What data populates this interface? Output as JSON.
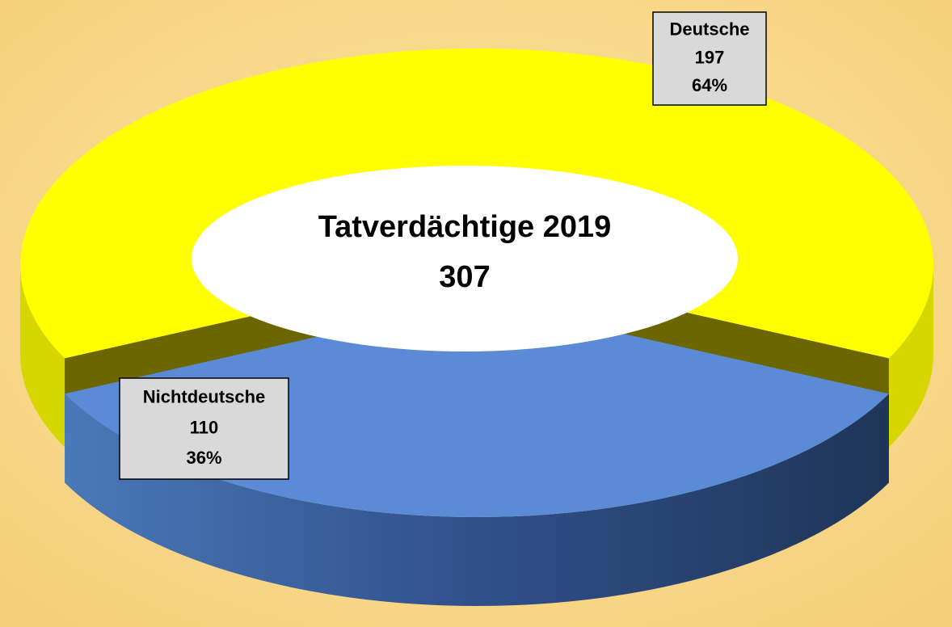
{
  "chart_data": {
    "type": "pie",
    "title": "Tatverdächtige 2019",
    "total": 307,
    "categories": [
      "Deutsche",
      "Nichtdeutsche"
    ],
    "values": [
      197,
      110
    ],
    "percent_labels": [
      "64%",
      "36%"
    ],
    "colors": [
      "#ffff00",
      "#5b8bd6"
    ]
  }
}
